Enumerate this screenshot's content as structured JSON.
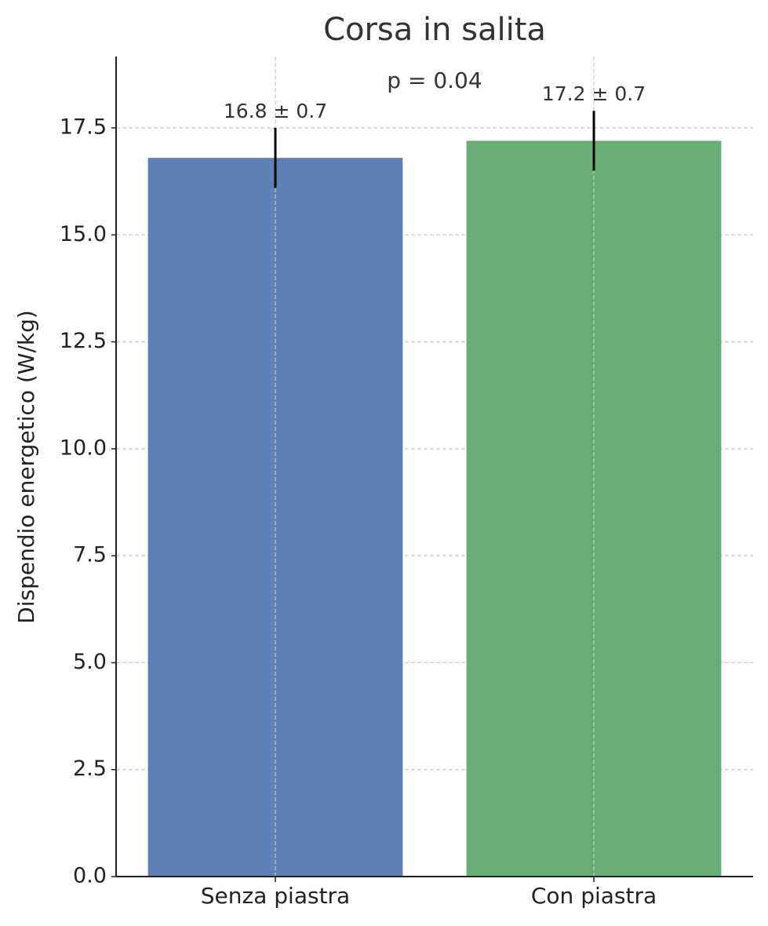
{
  "chart_data": {
    "type": "bar",
    "title": "Corsa in salita",
    "y_label": "Dispendio energetico (W/kg)",
    "annotation": "p = 0.04",
    "categories": [
      "Senza piastra",
      "Con piastra"
    ],
    "values": [
      16.8,
      17.2
    ],
    "errors": [
      0.7,
      0.7
    ],
    "value_labels": [
      "16.8 ± 0.7",
      "17.2 ± 0.7"
    ],
    "colors": [
      "#5f80b4",
      "#69ae77"
    ],
    "ylim": [
      0,
      19.17
    ],
    "yticks": [
      {
        "value": 0,
        "label": "0.0"
      },
      2.5,
      {
        "value": 5,
        "label": "5.0"
      },
      7.5,
      {
        "value": 10,
        "label": "10.0"
      },
      12.5,
      {
        "value": 15,
        "label": "15.0"
      },
      17.5
    ],
    "grid": true
  }
}
